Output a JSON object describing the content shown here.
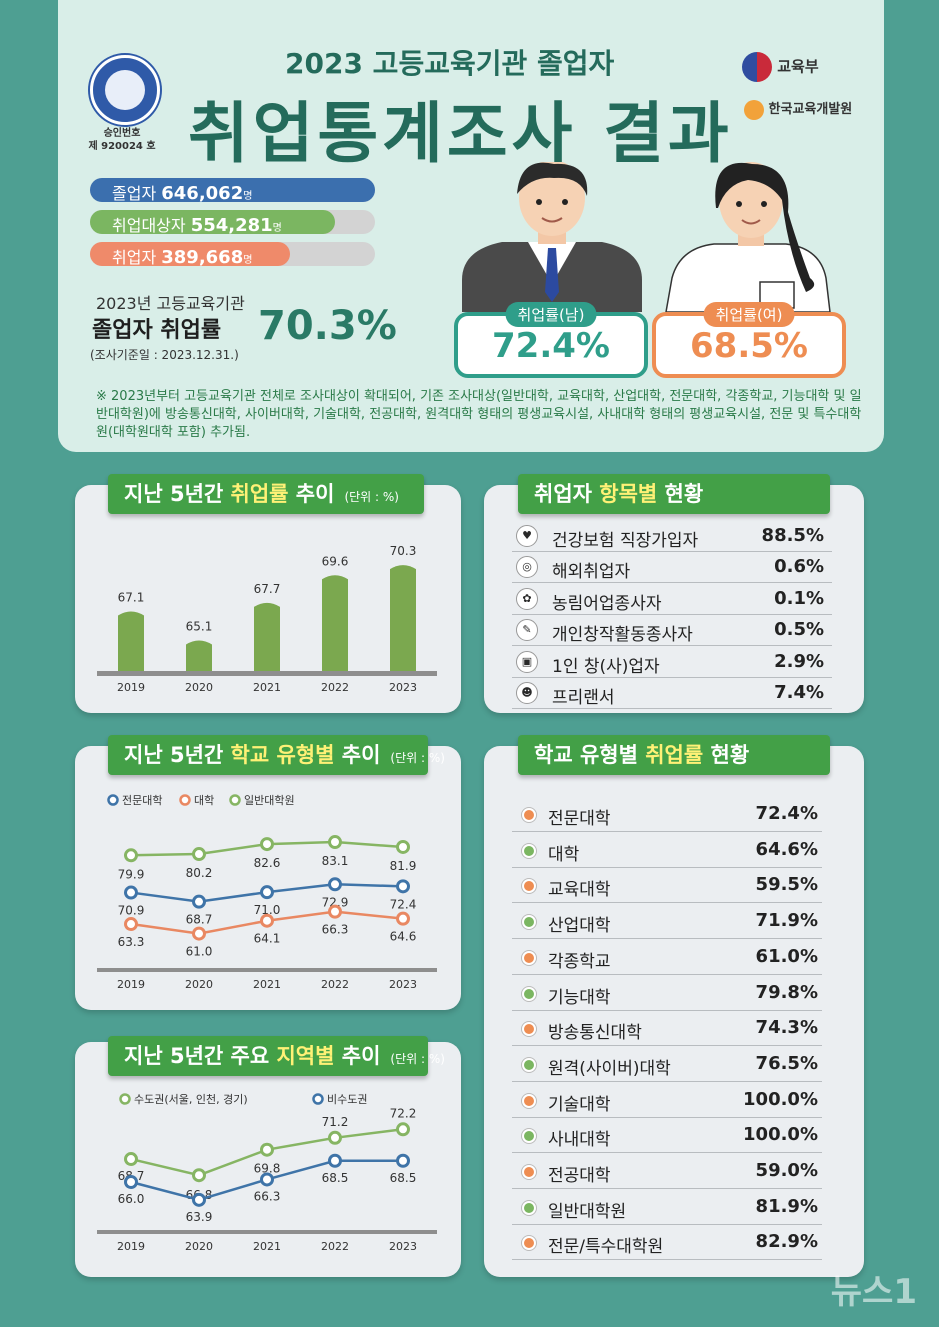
{
  "header": {
    "subtitle": "2023 고등교육기관 졸업자",
    "title": "취업통계조사 결과",
    "emblem_text": "승인번호",
    "emblem_no": "제 920024 호",
    "logo1": "교육부",
    "logo2": "한국교육개발원"
  },
  "summary": {
    "bars": [
      {
        "label": "졸업자",
        "value": "646,062",
        "unit": "명",
        "fraction": 1.0,
        "color": "#3b6fae"
      },
      {
        "label": "취업대상자",
        "value": "554,281",
        "unit": "명",
        "fraction": 0.858,
        "color": "#7bb661"
      },
      {
        "label": "취업자",
        "value": "389,668",
        "unit": "명",
        "fraction": 0.703,
        "color": "#ef8a6a"
      }
    ],
    "rate_line1": "2023년 고등교육기관",
    "rate_line2": "졸업자 취업률",
    "rate_value": "70.3%",
    "rate_date": "(조사기준일 : 2023.12.31.)"
  },
  "gender": {
    "male": {
      "tag": "취업률(남)",
      "value": "72.4%",
      "color": "#2f9e8a"
    },
    "female": {
      "tag": "취업률(여)",
      "value": "68.5%",
      "color": "#ee8d52"
    }
  },
  "note": "※ 2023년부터 고등교육기관 전체로 조사대상이 확대되어, 기존 조사대상(일반대학, 교육대학, 산업대학, 전문대학, 각종학교, 기능대학 및 일반대학원)에 방송통신대학, 사이버대학, 기술대학, 전공대학, 원격대학 형태의 평생교육시설, 사내대학 형태의 평생교육시설, 전문 및 특수대학원(대학원대학 포함) 추가됨.",
  "panels": {
    "trend": {
      "pre": "지난 5년간 ",
      "hl": "취업률",
      "post": " 추이",
      "unit": "(단위 : %)"
    },
    "items": {
      "pre": "취업자 ",
      "hl": "항목별",
      "post": " 현황"
    },
    "schooltype": {
      "pre": "지난 5년간 ",
      "hl": "학교 유형별",
      "post": " 추이",
      "unit": "(단위 : %)"
    },
    "region": {
      "pre": "지난 5년간 주요 ",
      "hl": "지역별",
      "post": " 추이",
      "unit": "(단위 : %)"
    },
    "school_rates": {
      "pre": "학교 유형별 ",
      "hl": "취업률",
      "post": " 현황"
    }
  },
  "chart_data": [
    {
      "type": "bar",
      "categories": [
        "2019",
        "2020",
        "2021",
        "2022",
        "2023"
      ],
      "values": [
        67.1,
        65.1,
        67.7,
        69.6,
        70.3
      ],
      "ylim": [
        63,
        71
      ],
      "color": "#7ba84f"
    },
    {
      "type": "line",
      "categories": [
        "2019",
        "2020",
        "2021",
        "2022",
        "2023"
      ],
      "series": [
        {
          "name": "전문대학",
          "values": [
            70.9,
            68.7,
            71.0,
            72.9,
            72.4
          ],
          "color": "#3f74a8"
        },
        {
          "name": "대학",
          "values": [
            63.3,
            61.0,
            64.1,
            66.3,
            64.6
          ],
          "color": "#e98862"
        },
        {
          "name": "일반대학원",
          "values": [
            79.9,
            80.2,
            82.6,
            83.1,
            81.9
          ],
          "color": "#86b563"
        }
      ],
      "ylim": [
        58,
        86
      ]
    },
    {
      "type": "line",
      "categories": [
        "2019",
        "2020",
        "2021",
        "2022",
        "2023"
      ],
      "series": [
        {
          "name": "수도권(서울, 인천, 경기)",
          "values": [
            68.7,
            66.8,
            69.8,
            71.2,
            72.2
          ],
          "color": "#86b563"
        },
        {
          "name": "비수도권",
          "values": [
            66.0,
            63.9,
            66.3,
            68.5,
            68.5
          ],
          "color": "#3f74a8"
        }
      ],
      "ylim": [
        62,
        74
      ]
    }
  ],
  "items": [
    {
      "icon": "♥",
      "label": "건강보험 직장가입자",
      "value": "88.5%"
    },
    {
      "icon": "◎",
      "label": "해외취업자",
      "value": "0.6%"
    },
    {
      "icon": "✿",
      "label": "농림어업종사자",
      "value": "0.1%"
    },
    {
      "icon": "✎",
      "label": "개인창작활동종사자",
      "value": "0.5%"
    },
    {
      "icon": "▣",
      "label": "1인 창(사)업자",
      "value": "2.9%"
    },
    {
      "icon": "☻",
      "label": "프리랜서",
      "value": "7.4%"
    }
  ],
  "school_rates": [
    {
      "label": "전문대학",
      "value": "72.4%",
      "color": "#ee8d52"
    },
    {
      "label": "대학",
      "value": "64.6%",
      "color": "#7bb661"
    },
    {
      "label": "교육대학",
      "value": "59.5%",
      "color": "#ee8d52"
    },
    {
      "label": "산업대학",
      "value": "71.9%",
      "color": "#7bb661"
    },
    {
      "label": "각종학교",
      "value": "61.0%",
      "color": "#ee8d52"
    },
    {
      "label": "기능대학",
      "value": "79.8%",
      "color": "#7bb661"
    },
    {
      "label": "방송통신대학",
      "value": "74.3%",
      "color": "#ee8d52"
    },
    {
      "label": "원격(사이버)대학",
      "value": "76.5%",
      "color": "#7bb661"
    },
    {
      "label": "기술대학",
      "value": "100.0%",
      "color": "#ee8d52"
    },
    {
      "label": "사내대학",
      "value": "100.0%",
      "color": "#7bb661"
    },
    {
      "label": "전공대학",
      "value": "59.0%",
      "color": "#ee8d52"
    },
    {
      "label": "일반대학원",
      "value": "81.9%",
      "color": "#7bb661"
    },
    {
      "label": "전문/특수대학원",
      "value": "82.9%",
      "color": "#ee8d52"
    }
  ],
  "watermark": "뉴스1"
}
